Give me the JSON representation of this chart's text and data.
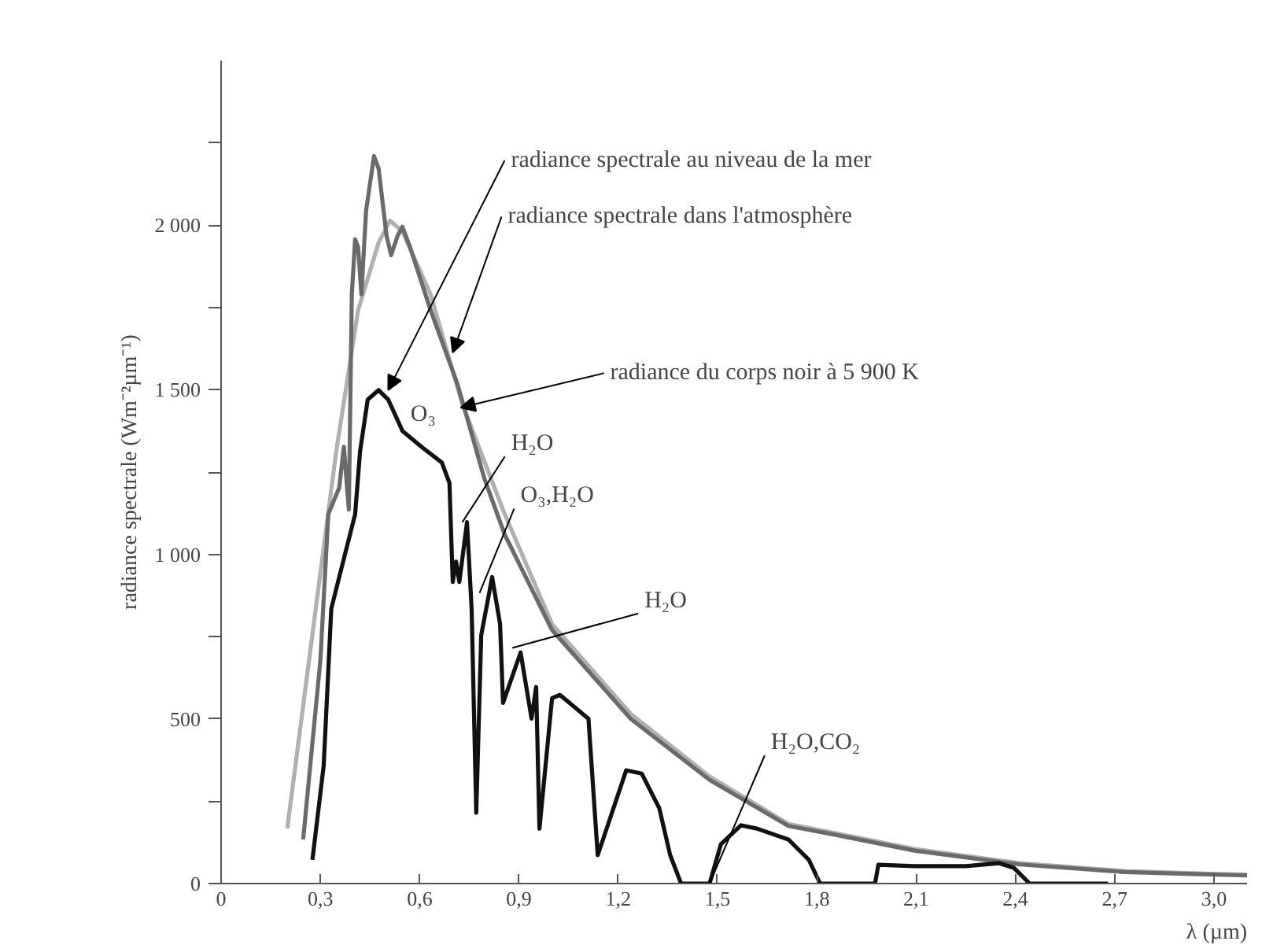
{
  "chart_data": {
    "type": "line",
    "xlabel": "λ (µm)",
    "ylabel": "radiance spectrale (Wm⁻²µm⁻¹)",
    "xlim": [
      0,
      3.1
    ],
    "ylim": [
      0,
      2500
    ],
    "xticks": [
      {
        "value": 0,
        "label": "0"
      },
      {
        "value": 0.3,
        "label": "0,3"
      },
      {
        "value": 0.6,
        "label": "0,6"
      },
      {
        "value": 0.9,
        "label": "0,9"
      },
      {
        "value": 1.2,
        "label": "1,2"
      },
      {
        "value": 1.5,
        "label": "1,5"
      },
      {
        "value": 1.8,
        "label": "1,8"
      },
      {
        "value": 2.1,
        "label": "2,1"
      },
      {
        "value": 2.4,
        "label": "2,4"
      },
      {
        "value": 2.7,
        "label": "2,7"
      },
      {
        "value": 3.0,
        "label": "3,0"
      }
    ],
    "yticks": [
      0,
      {
        "value": 250,
        "label": null
      },
      500,
      {
        "value": 750,
        "label": null
      },
      {
        "value": 1000,
        "label": "1 000"
      },
      {
        "value": 1250,
        "label": null
      },
      {
        "value": 1500,
        "label": "1 500"
      },
      {
        "value": 1750,
        "label": null
      },
      {
        "value": 2000,
        "label": "2 000"
      },
      {
        "value": 2250,
        "label": null
      }
    ],
    "grid": false,
    "marker": "none",
    "line_style": "solid",
    "series": [
      {
        "color": "#b0b0b0",
        "x": [
          0.2,
          0.286,
          0.348,
          0.414,
          0.476,
          0.51,
          0.548,
          0.633,
          0.729,
          0.857,
          1.0,
          1.238,
          1.476,
          1.714,
          1.857,
          2.095,
          2.414,
          2.73,
          3.01,
          3.1
        ],
        "values": [
          167,
          835,
          1313,
          1742,
          1947,
          2014,
          1981,
          1790,
          1456,
          1122,
          788,
          515,
          325,
          181,
          153,
          105,
          62,
          38,
          29,
          27
        ]
      },
      {
        "color": "#6a6a6a",
        "x": [
          0.248,
          0.3,
          0.324,
          0.357,
          0.371,
          0.386,
          0.395,
          0.405,
          0.414,
          0.424,
          0.438,
          0.462,
          0.476,
          0.5,
          0.514,
          0.533,
          0.548,
          0.571,
          0.633,
          0.714,
          0.795,
          0.857,
          1.0,
          1.238,
          1.476,
          1.714,
          1.857,
          2.095,
          2.414,
          2.73,
          3.01,
          3.1
        ],
        "values": [
          134,
          678,
          1122,
          1203,
          1327,
          1136,
          1790,
          1957,
          1933,
          1790,
          2043,
          2210,
          2172,
          1967,
          1909,
          1967,
          1995,
          1933,
          1742,
          1518,
          1232,
          1060,
          770,
          500,
          315,
          175,
          148,
          100,
          58,
          35,
          27,
          25
        ]
      },
      {
        "color": "#111111",
        "x": [
          0.276,
          0.31,
          0.333,
          0.357,
          0.405,
          0.42,
          0.443,
          0.476,
          0.505,
          0.548,
          0.605,
          0.667,
          0.69,
          0.7,
          0.71,
          0.72,
          0.743,
          0.757,
          0.771,
          0.786,
          0.819,
          0.843,
          0.852,
          0.905,
          0.938,
          0.952,
          0.962,
          1.0,
          1.024,
          1.11,
          1.138,
          1.224,
          1.271,
          1.324,
          1.357,
          1.39,
          1.476,
          1.51,
          1.571,
          1.619,
          1.714,
          1.776,
          1.81,
          1.976,
          1.986,
          2.095,
          2.25,
          2.35,
          2.395,
          2.443,
          2.68
        ],
        "values": [
          72,
          358,
          835,
          931,
          1122,
          1313,
          1470,
          1499,
          1470,
          1375,
          1327,
          1279,
          1217,
          916,
          978,
          916,
          1098,
          835,
          215,
          754,
          931,
          788,
          549,
          702,
          501,
          597,
          167,
          563,
          573,
          501,
          86,
          344,
          334,
          229,
          86,
          0,
          0,
          119,
          177,
          167,
          134,
          72,
          0,
          0,
          57,
          53,
          53,
          62,
          48,
          0,
          0
        ]
      }
    ],
    "annotations": [
      {
        "text": "radiance spectrale au niveau de la mer",
        "x": 0.505,
        "y": 1499
      },
      {
        "text": "radiance spectrale dans l'atmosphère",
        "x": 0.7,
        "y": 1613
      },
      {
        "text": "radiance du corps noir à 5 900 K",
        "x": 0.724,
        "y": 1446
      },
      {
        "text": "O₃",
        "x": 0.62,
        "y": 1320
      },
      {
        "text": "H₂O",
        "x": 0.729,
        "y": 1098
      },
      {
        "text": "O₃,H₂O",
        "x": 0.781,
        "y": 883
      },
      {
        "text": "H₂O",
        "x": 0.88,
        "y": 716
      },
      {
        "text": "H₂O,CO₂",
        "x": 1.476,
        "y": 0
      }
    ]
  }
}
